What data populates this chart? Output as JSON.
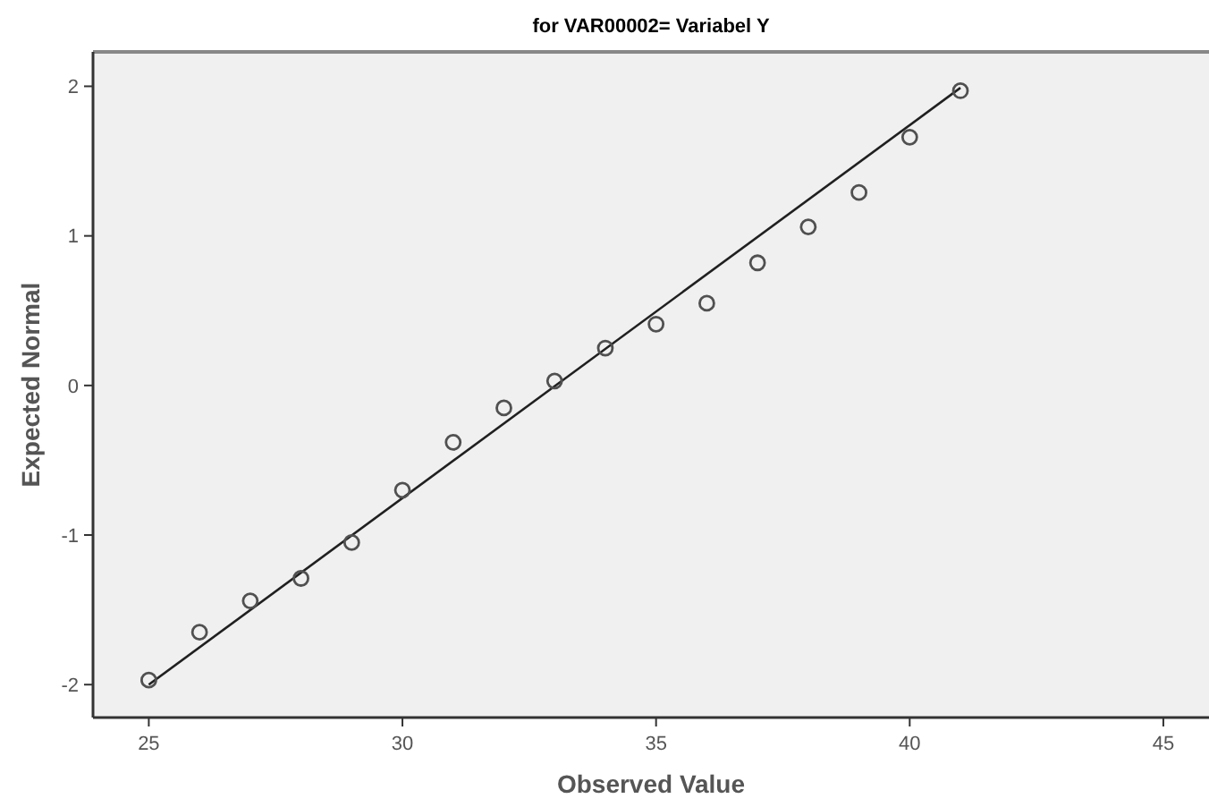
{
  "chart_data": {
    "type": "scatter",
    "title": "for VAR00002= Variabel Y",
    "xlabel": "Observed Value",
    "ylabel": "Expected Normal",
    "xlim": [
      23.9,
      45.9
    ],
    "xticks": [
      25,
      30,
      35,
      40,
      45
    ],
    "ylim": [
      -2.22,
      2.23
    ],
    "yticks": [
      -2,
      -1,
      0,
      1,
      2
    ],
    "grid": false,
    "marker": "circle",
    "series": [
      {
        "color": "#505050",
        "x": [
          25,
          26,
          27,
          28,
          29,
          30,
          31,
          32,
          33,
          34,
          35,
          36,
          37,
          38,
          39,
          40,
          41
        ],
        "values": [
          -1.97,
          -1.65,
          -1.44,
          -1.29,
          -1.05,
          -0.7,
          -0.38,
          -0.15,
          0.03,
          0.25,
          0.41,
          0.55,
          0.82,
          1.06,
          1.29,
          1.66,
          1.97
        ]
      },
      {
        "type": "line",
        "color": "#202020",
        "line_style": "solid",
        "marker": "none",
        "x": [
          25,
          41
        ],
        "values": [
          -2.0,
          1.99
        ]
      }
    ]
  }
}
